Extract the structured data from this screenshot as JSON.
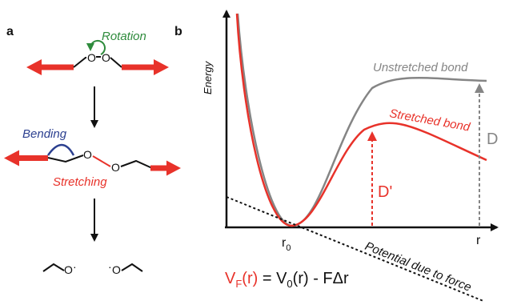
{
  "panel_a": {
    "letter": "a",
    "rotation_label": "Rotation",
    "bending_label": "Bending",
    "stretching_label": "Stretching",
    "atom_label": "O",
    "radical_dot": "·"
  },
  "panel_b": {
    "letter": "b",
    "y_axis_label": "Energy",
    "x_axis_label": "r",
    "r0_label": "r",
    "r0_subscript": "0",
    "unstretched_label": "Unstretched bond",
    "stretched_label": "Stretched bond",
    "potential_label": "Potential due to force",
    "D_label": "D",
    "D_prime_label": "D'",
    "equation": {
      "lhs": "V",
      "lhs_sub": "F",
      "lhs_arg": "(r)",
      "equals": " = ",
      "rhs": "V",
      "rhs_sub": "0",
      "rhs_arg": "(r) - FΔr"
    }
  },
  "colors": {
    "force_arrow": "#e8322a",
    "rotation": "#2e8b3c",
    "bending": "#2b3f8f",
    "stretching": "#e8322a",
    "unstretched": "#858585",
    "stretched": "#e8322a",
    "axis": "#111111"
  }
}
